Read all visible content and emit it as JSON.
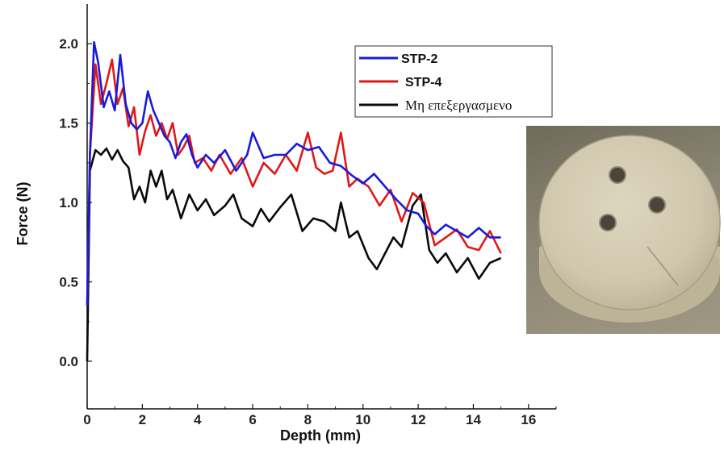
{
  "chart_data": {
    "type": "line",
    "xlabel": "Depth (mm)",
    "ylabel": "Force (N)",
    "xlim": [
      0,
      17
    ],
    "ylim": [
      -0.3,
      2.25
    ],
    "xticks": [
      "0",
      "2",
      "4",
      "6",
      "8",
      "10",
      "12",
      "14",
      "16"
    ],
    "yticks": [
      "0.0",
      "0.5",
      "1.0",
      "1.5",
      "2.0"
    ],
    "legend_position": "top-right",
    "series": [
      {
        "name": "STP-2",
        "color": "#1a1adc",
        "x": [
          0,
          0.1,
          0.25,
          0.4,
          0.6,
          0.8,
          1.0,
          1.2,
          1.4,
          1.6,
          1.8,
          2.0,
          2.2,
          2.4,
          2.6,
          2.8,
          3.0,
          3.2,
          3.4,
          3.6,
          3.8,
          4.0,
          4.3,
          4.6,
          5.0,
          5.4,
          5.8,
          6.0,
          6.4,
          6.8,
          7.2,
          7.6,
          8.0,
          8.4,
          8.8,
          9.2,
          9.6,
          10.0,
          10.4,
          10.8,
          11.2,
          11.6,
          12.0,
          12.3,
          12.6,
          13.0,
          13.4,
          13.8,
          14.2,
          14.6,
          15.0
        ],
        "y": [
          0.35,
          1.3,
          2.01,
          1.88,
          1.6,
          1.7,
          1.58,
          1.93,
          1.62,
          1.5,
          1.46,
          1.5,
          1.7,
          1.58,
          1.5,
          1.42,
          1.38,
          1.28,
          1.38,
          1.43,
          1.3,
          1.22,
          1.3,
          1.25,
          1.33,
          1.2,
          1.3,
          1.44,
          1.28,
          1.3,
          1.3,
          1.37,
          1.33,
          1.35,
          1.25,
          1.23,
          1.17,
          1.12,
          1.18,
          1.1,
          1.02,
          0.95,
          0.93,
          0.85,
          0.8,
          0.86,
          0.82,
          0.78,
          0.84,
          0.78,
          0.78
        ]
      },
      {
        "name": "STP-4",
        "color": "#e01818",
        "x": [
          0,
          0.1,
          0.3,
          0.5,
          0.7,
          0.9,
          1.1,
          1.3,
          1.5,
          1.7,
          1.9,
          2.1,
          2.3,
          2.5,
          2.7,
          2.9,
          3.1,
          3.3,
          3.5,
          3.7,
          3.9,
          4.2,
          4.5,
          4.8,
          5.2,
          5.6,
          6.0,
          6.4,
          6.8,
          7.2,
          7.6,
          8.0,
          8.3,
          8.6,
          8.9,
          9.2,
          9.5,
          9.8,
          10.2,
          10.6,
          11.0,
          11.4,
          11.8,
          12.2,
          12.6,
          13.0,
          13.4,
          13.8,
          14.2,
          14.6,
          15.0
        ],
        "y": [
          0.35,
          1.3,
          1.87,
          1.62,
          1.75,
          1.9,
          1.62,
          1.72,
          1.48,
          1.6,
          1.3,
          1.45,
          1.55,
          1.42,
          1.5,
          1.4,
          1.5,
          1.3,
          1.35,
          1.42,
          1.25,
          1.28,
          1.2,
          1.3,
          1.18,
          1.28,
          1.1,
          1.25,
          1.18,
          1.3,
          1.2,
          1.44,
          1.22,
          1.18,
          1.2,
          1.44,
          1.1,
          1.15,
          1.1,
          0.98,
          1.08,
          0.88,
          1.06,
          1.0,
          0.73,
          0.78,
          0.83,
          0.72,
          0.7,
          0.82,
          0.68
        ]
      },
      {
        "name": "Μη επεξεργασμενο",
        "color": "#0a0a0a",
        "x": [
          0,
          0.1,
          0.3,
          0.5,
          0.7,
          0.9,
          1.1,
          1.3,
          1.5,
          1.7,
          1.9,
          2.1,
          2.3,
          2.5,
          2.7,
          2.9,
          3.1,
          3.4,
          3.7,
          4.0,
          4.3,
          4.6,
          5.0,
          5.3,
          5.6,
          6.0,
          6.3,
          6.6,
          7.0,
          7.4,
          7.8,
          8.2,
          8.6,
          9.0,
          9.2,
          9.5,
          9.8,
          10.2,
          10.5,
          10.8,
          11.1,
          11.4,
          11.8,
          12.1,
          12.4,
          12.7,
          13.0,
          13.4,
          13.8,
          14.2,
          14.6,
          15.0
        ],
        "y": [
          0.0,
          1.2,
          1.33,
          1.3,
          1.34,
          1.27,
          1.33,
          1.26,
          1.22,
          1.02,
          1.1,
          1.0,
          1.2,
          1.1,
          1.2,
          1.02,
          1.08,
          0.9,
          1.05,
          0.95,
          1.02,
          0.92,
          0.98,
          1.05,
          0.9,
          0.85,
          0.96,
          0.88,
          0.97,
          1.05,
          0.82,
          0.9,
          0.88,
          0.82,
          1.0,
          0.78,
          0.82,
          0.65,
          0.58,
          0.68,
          0.78,
          0.72,
          0.98,
          1.05,
          0.7,
          0.62,
          0.68,
          0.56,
          0.65,
          0.52,
          0.62,
          0.65
        ]
      }
    ]
  },
  "photo": {
    "subject": "disk-specimen-photo"
  }
}
